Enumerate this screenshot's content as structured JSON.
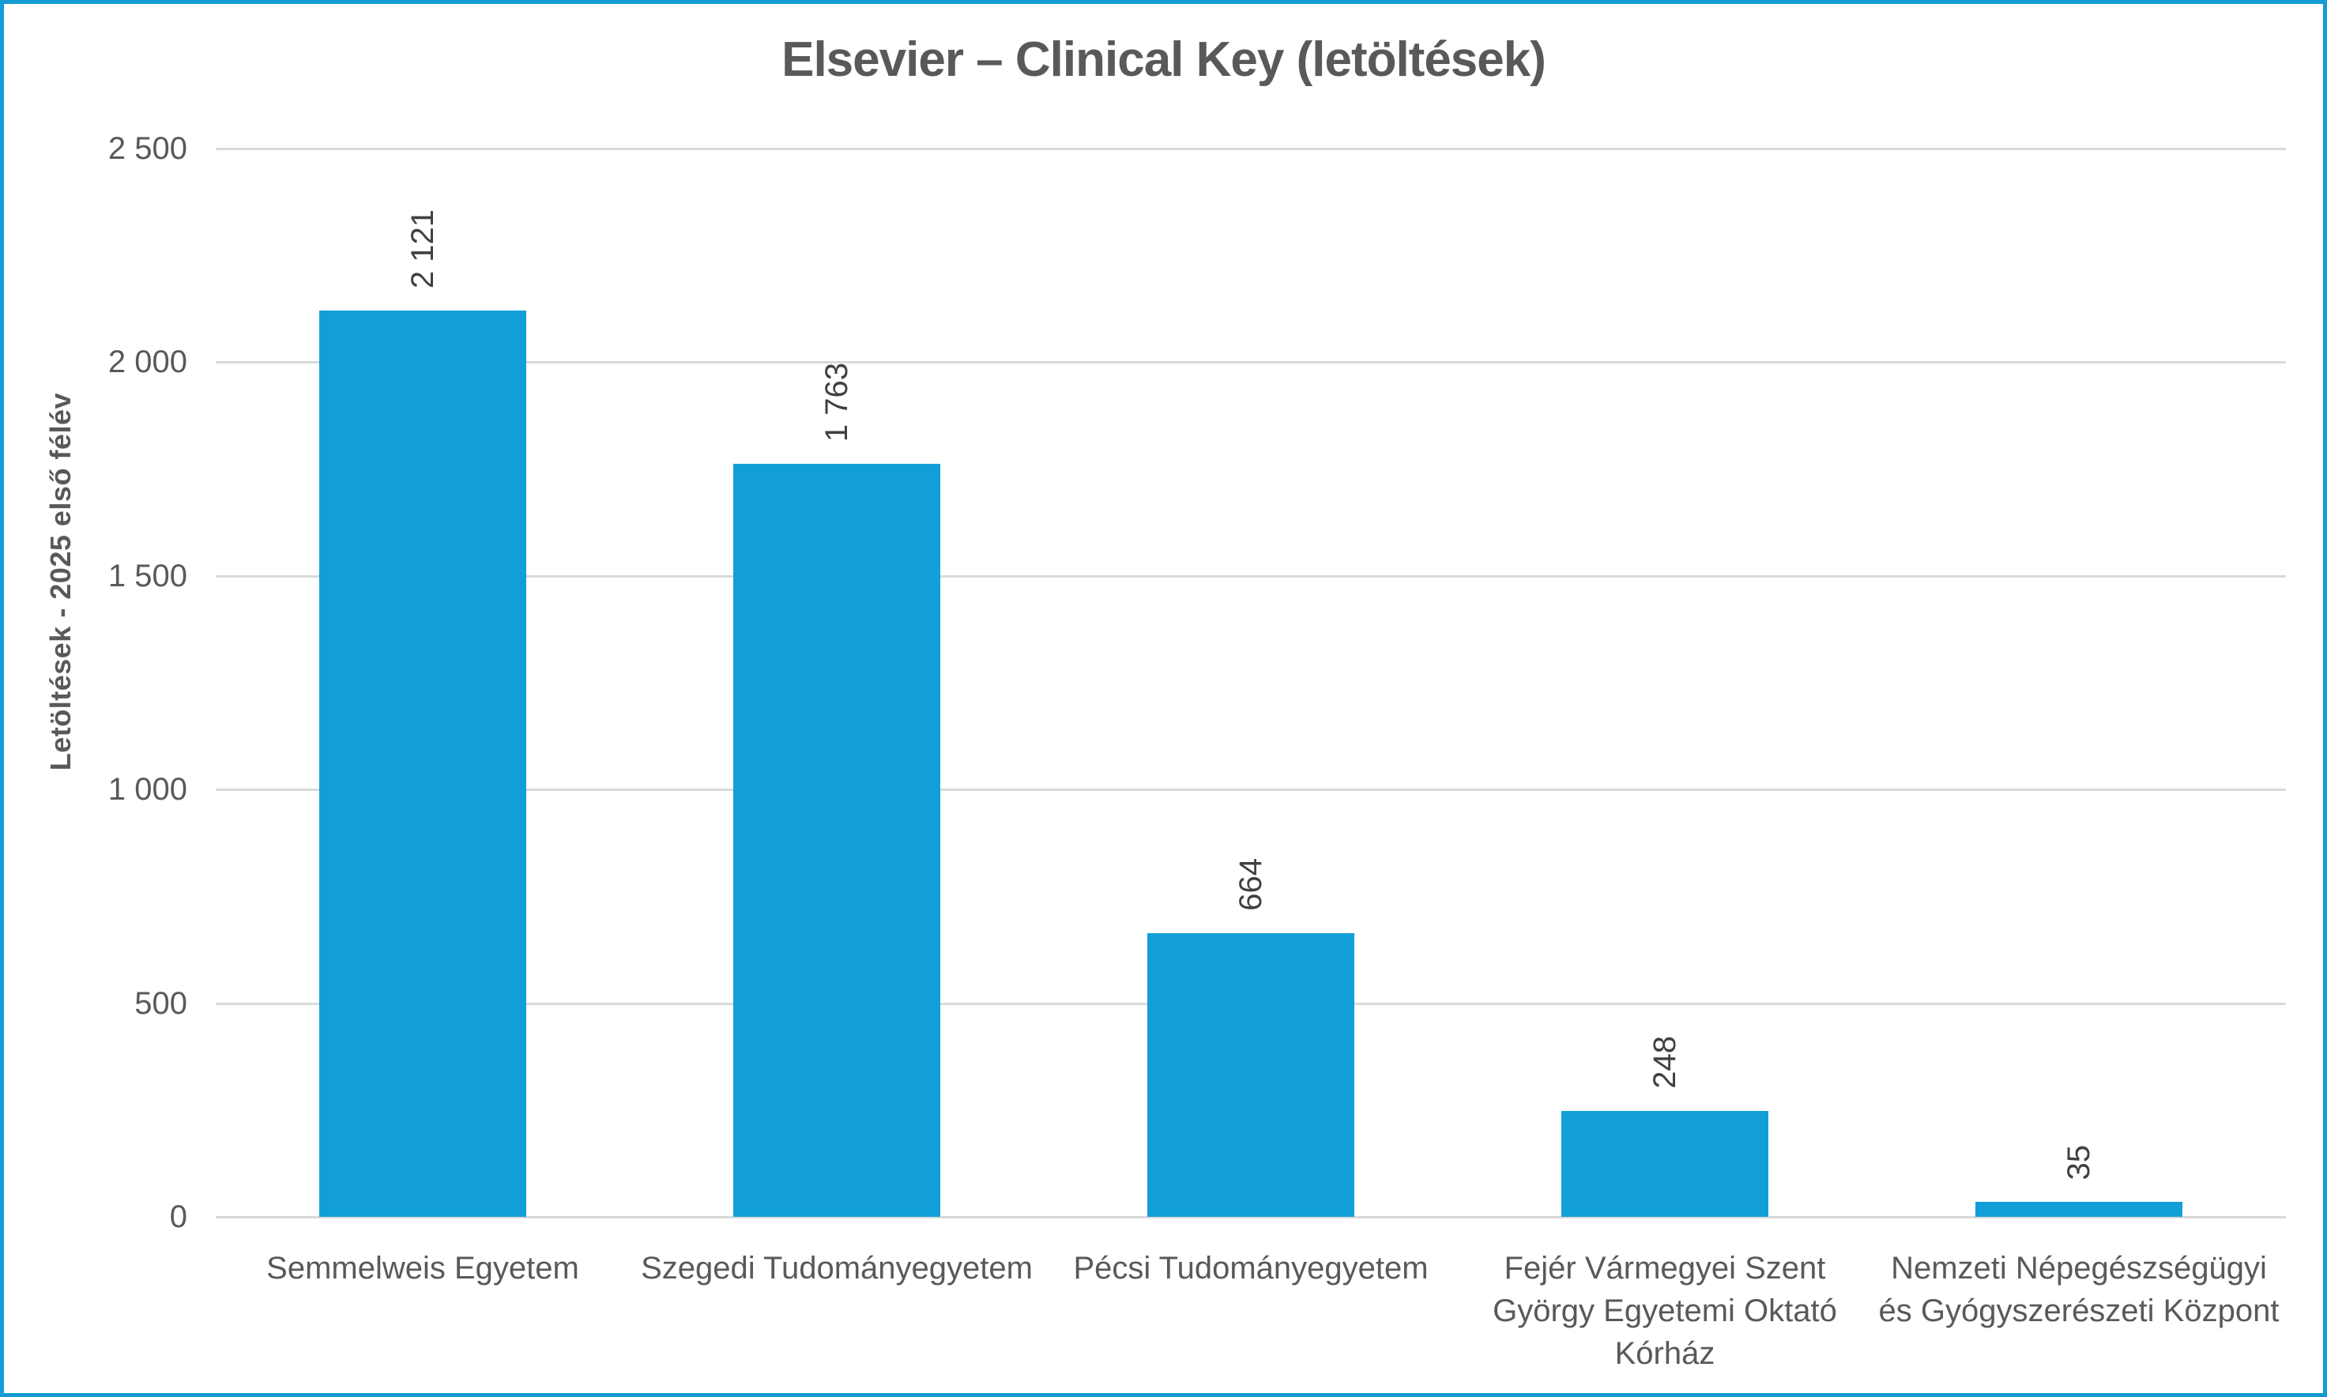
{
  "chart_data": {
    "type": "bar",
    "title": "Elsevier – Clinical Key (letöltések)",
    "ylabel": "Letöltések - 2025 első félév",
    "xlabel": "",
    "categories": [
      "Semmelweis Egyetem",
      "Szegedi Tudományegyetem",
      "Pécsi Tudományegyetem",
      "Fejér Vármegyei Szent György Egyetemi Oktató Kórház",
      "Nemzeti Népegészségügyi és Gyógyszerészeti Központ"
    ],
    "category_lines": [
      [
        "Semmelweis Egyetem"
      ],
      [
        "Szegedi Tudományegyetem"
      ],
      [
        "Pécsi Tudományegyetem"
      ],
      [
        "Fejér Vármegyei Szent",
        "György Egyetemi Oktató",
        "Kórház"
      ],
      [
        "Nemzeti Népegészségügyi",
        "és Gyógyszerészeti Központ"
      ]
    ],
    "values": [
      2121,
      1763,
      664,
      248,
      35
    ],
    "value_labels": [
      "2 121",
      "1 763",
      "664",
      "248",
      "35"
    ],
    "ylim": [
      0,
      2500
    ],
    "ytick_step": 500,
    "ytick_labels": [
      "0",
      "500",
      "1 000",
      "1 500",
      "2 000",
      "2 500"
    ],
    "grid": true,
    "legend": false,
    "value_label_rotation": -90,
    "colors": {
      "bar": "#129FD8",
      "frame_border": "#149BD5",
      "gridline": "#D9D9D9",
      "title": "#595959",
      "axis_text": "#595959",
      "value_label": "#404040",
      "background": "#FFFFFF"
    }
  }
}
